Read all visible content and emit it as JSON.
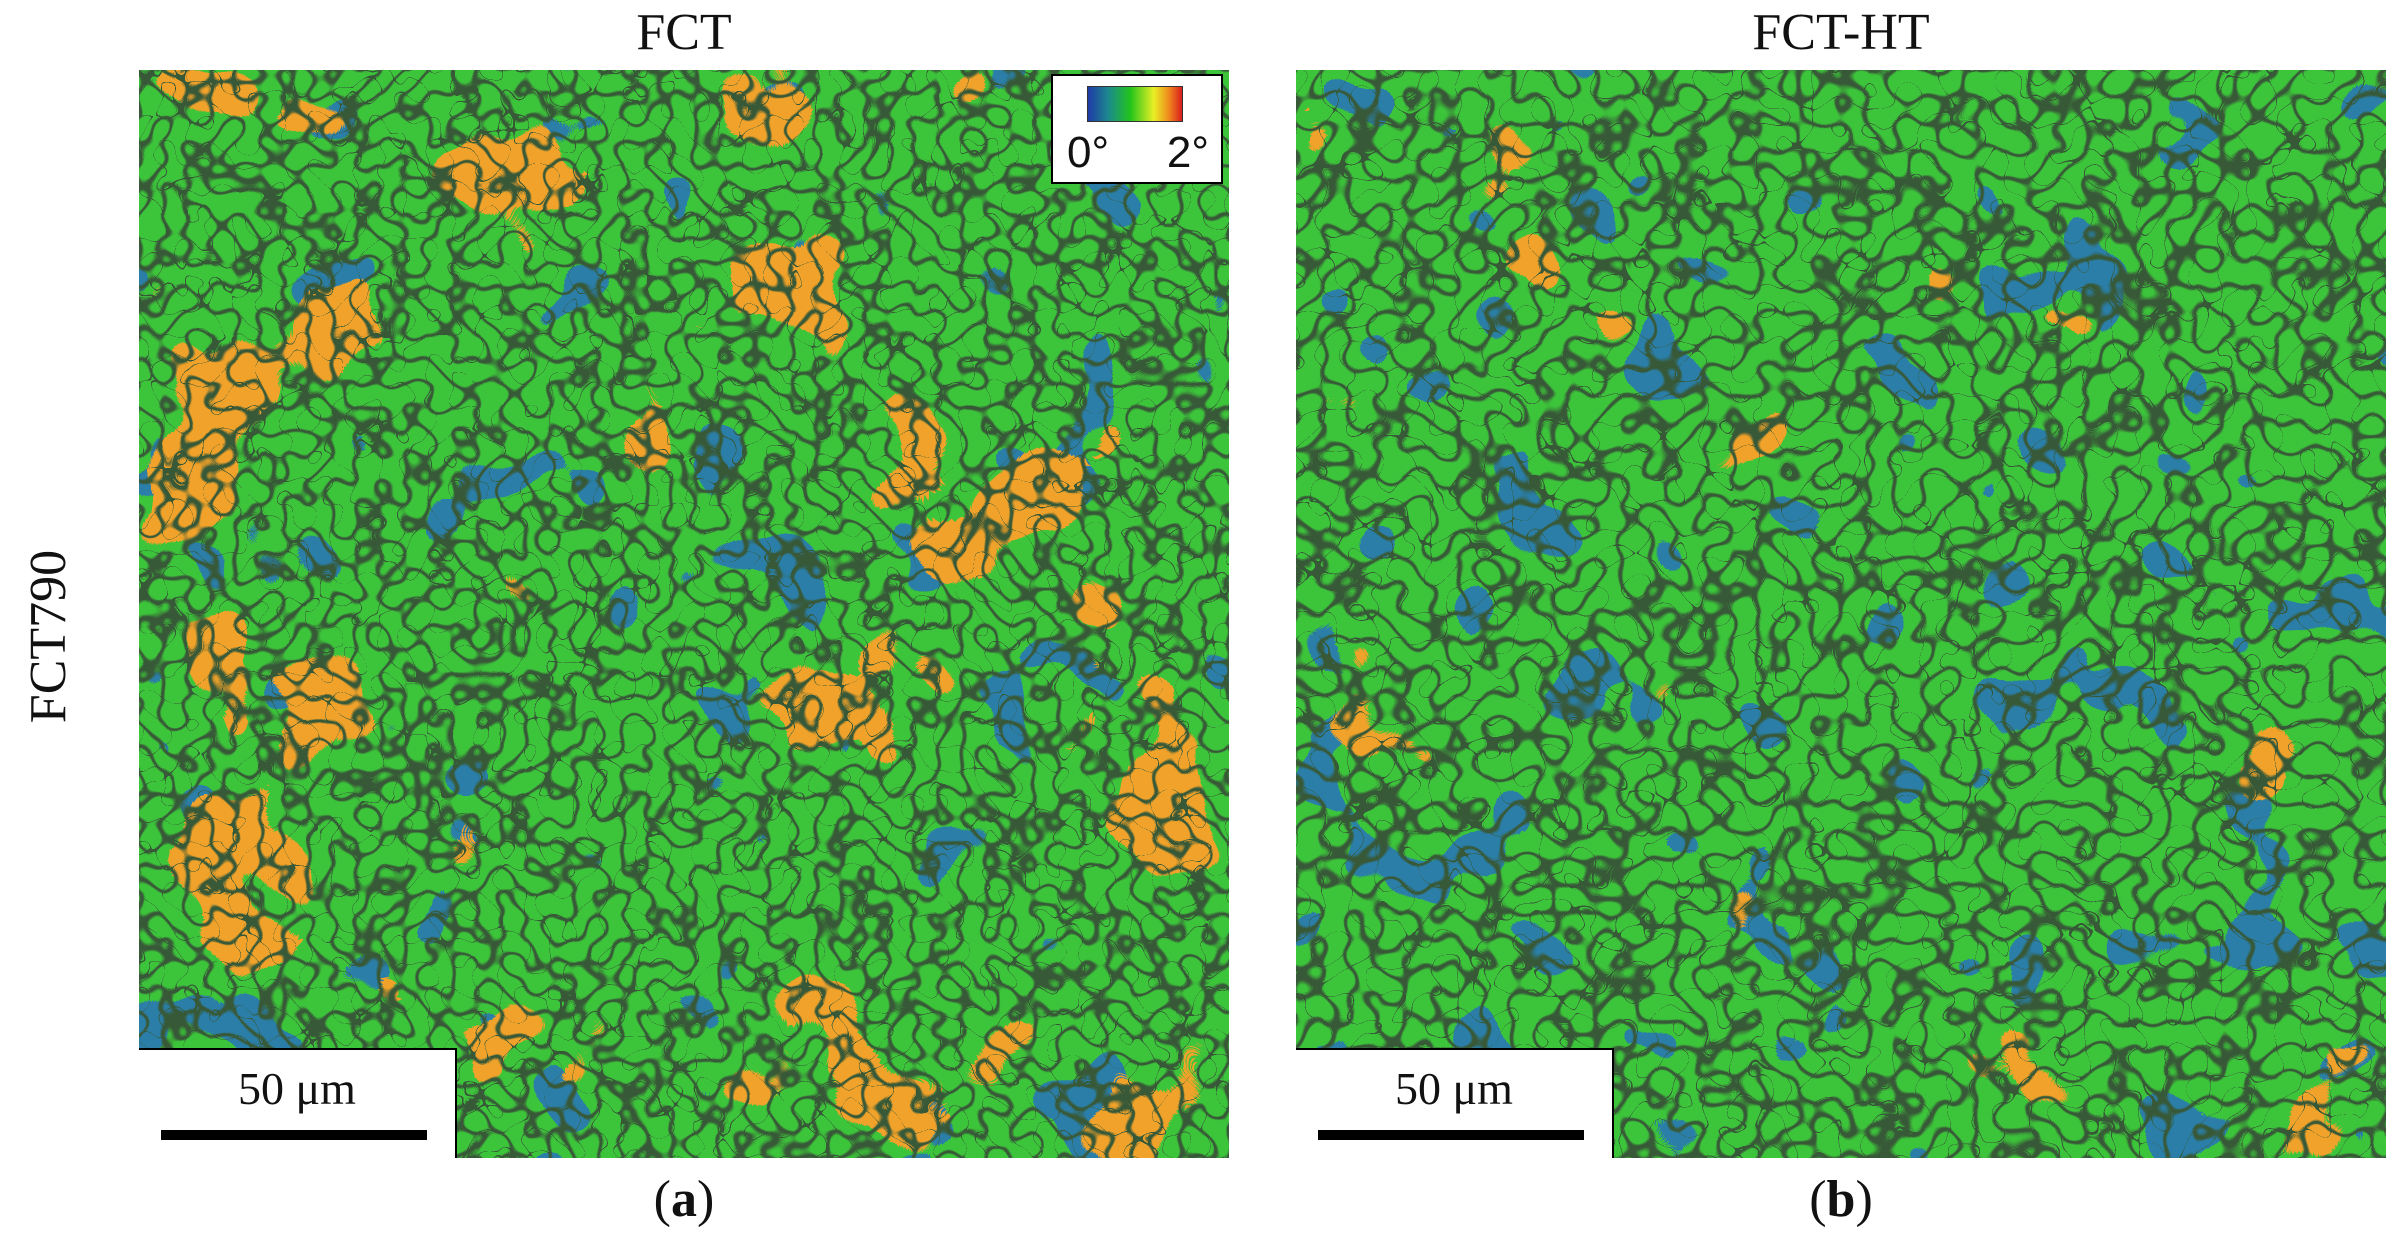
{
  "figure": {
    "row_label": "FCT790",
    "panels": [
      {
        "id": "a",
        "title": "FCT",
        "label_open": "(",
        "label_letter": "a",
        "label_close": ")",
        "scale_bar_text": "50 μm"
      },
      {
        "id": "b",
        "title": "FCT-HT",
        "label_open": "(",
        "label_letter": "b",
        "label_close": ")",
        "scale_bar_text": "50 μm"
      }
    ],
    "legend": {
      "min_label": "0°",
      "max_label": "2°",
      "colormap": [
        "#1f3aa8",
        "#1c8a8c",
        "#21c41c",
        "#e9ef25",
        "#f08a1e",
        "#d81d1d"
      ]
    },
    "colors": {
      "grain_green": "#3cc43a",
      "low_blue": "#2a7fa6",
      "high_orange": "#f08a1e",
      "boundary": "#0b1a0b"
    }
  }
}
